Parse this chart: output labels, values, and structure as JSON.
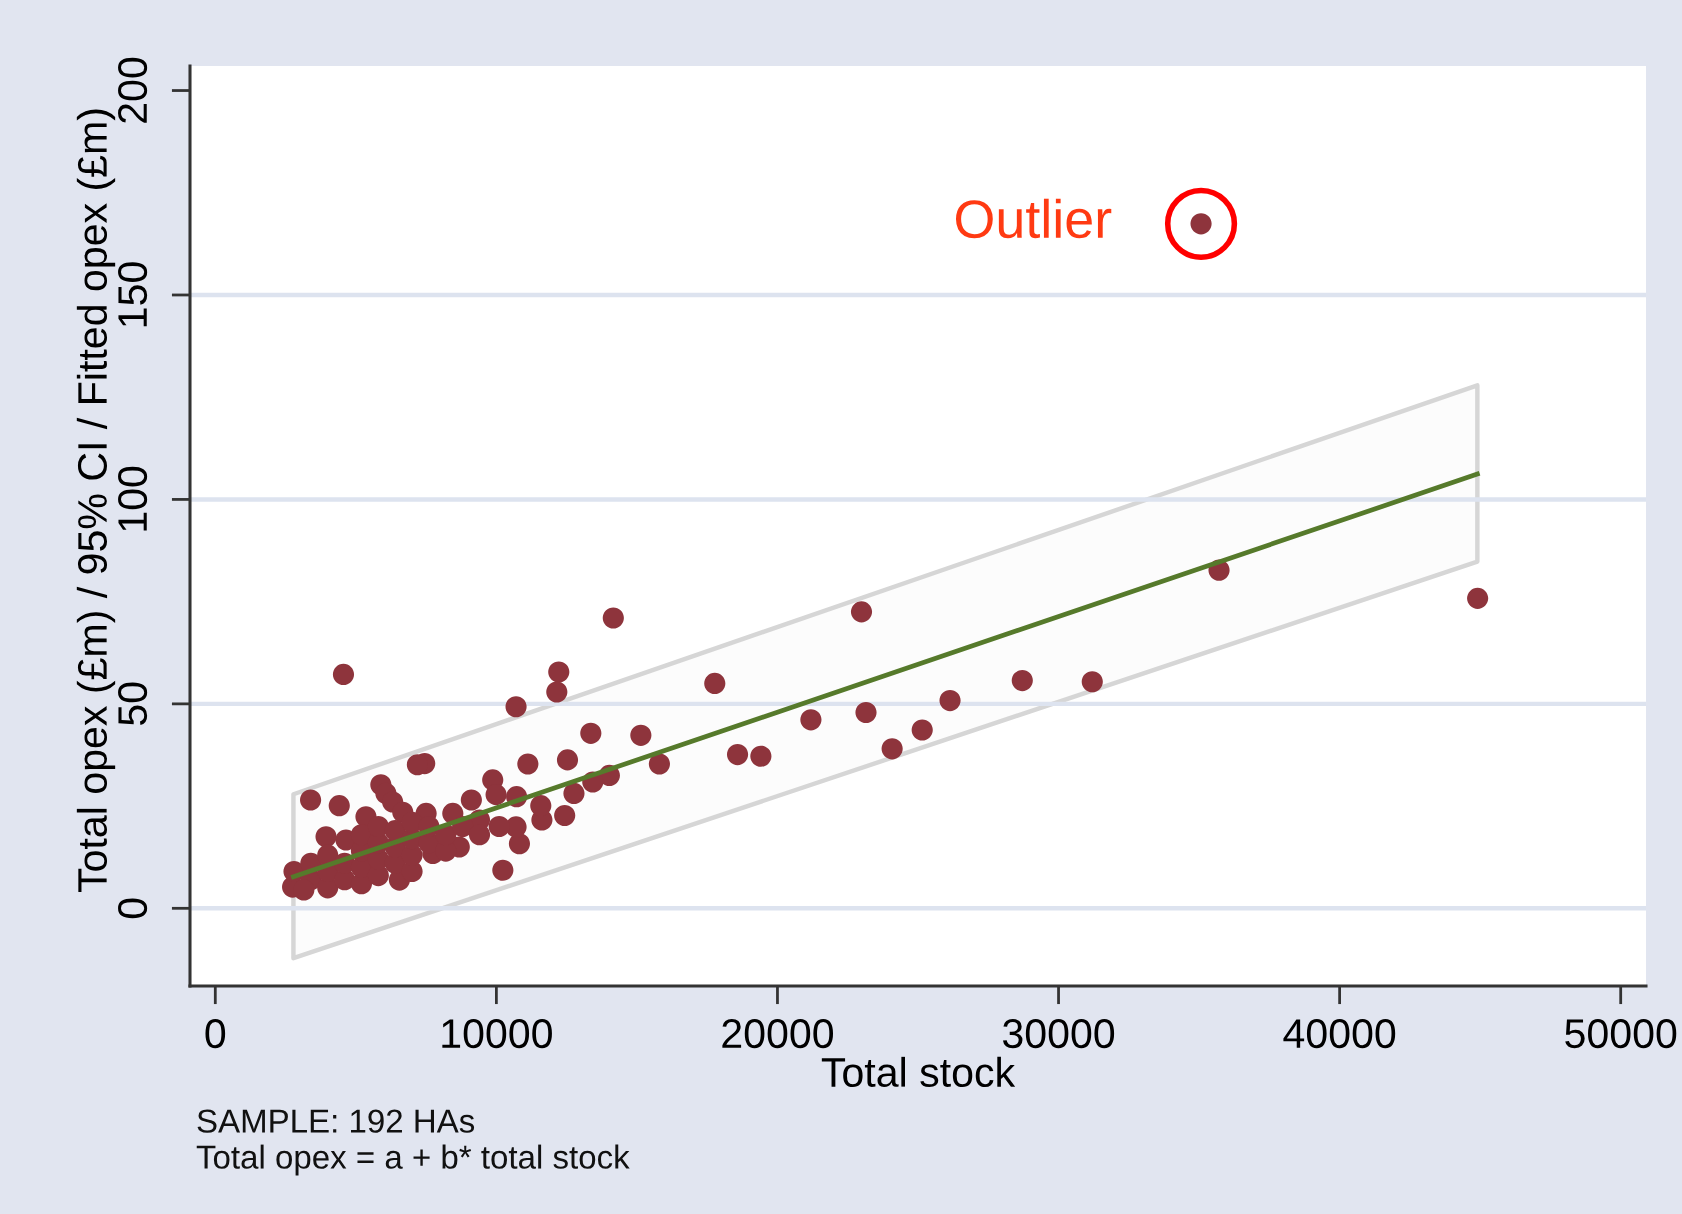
{
  "chart_data": {
    "type": "scatter",
    "xlabel": "Total stock",
    "ylabel": "Total opex (£m) / 95% CI / Fitted opex (£m)",
    "xlim": [
      -900,
      50900
    ],
    "ylim": [
      -19,
      206
    ],
    "xticks": [
      0,
      10000,
      20000,
      30000,
      40000,
      50000
    ],
    "yticks": [
      0,
      50,
      100,
      150,
      200
    ],
    "grid": "y",
    "series": [
      {
        "marker": "circle",
        "color": "#8e343c",
        "x": [
          22990,
          21190,
          23150,
          24080,
          25150,
          26140,
          28710,
          31200,
          35710,
          44910,
          35070,
          14160,
          12220,
          12150,
          10700,
          17770,
          13360,
          15140,
          18580,
          19410,
          15800,
          12530,
          11120,
          14020,
          13430,
          12760,
          12430,
          11620,
          11580,
          10720,
          10820,
          10230,
          10700,
          10100,
          4560,
          7450,
          7190,
          3390,
          4410,
          5890,
          6070,
          6310,
          6670,
          5360,
          7500,
          8450,
          9110,
          9870,
          9990,
          9400,
          6550,
          4650,
          3940,
          2750,
          7740,
          8680,
          2800,
          3400,
          3400,
          4000,
          4000,
          4000,
          4600,
          4600,
          5200,
          5200,
          5200,
          5200,
          5800,
          5800,
          5800,
          5800,
          6400,
          6400,
          6400,
          7000,
          7000,
          7000,
          7000,
          7600,
          7600,
          8200,
          8200,
          8800,
          9400,
          3150
        ],
        "values": [
          72.5,
          46.1,
          47.9,
          39.0,
          43.6,
          50.8,
          55.7,
          55.4,
          82.7,
          75.8,
          167.4,
          71.0,
          57.8,
          52.9,
          49.3,
          55.0,
          42.8,
          42.3,
          37.6,
          37.2,
          35.3,
          36.3,
          35.3,
          32.5,
          30.9,
          28.1,
          22.7,
          21.6,
          25.1,
          27.3,
          15.8,
          9.3,
          19.9,
          20,
          57.2,
          35.4,
          35.1,
          26.5,
          25.1,
          30.2,
          28.1,
          26.0,
          23.5,
          22.4,
          23.2,
          23.2,
          26.5,
          31.4,
          27.8,
          21.6,
          6.9,
          16.7,
          17.5,
          5.2,
          13.4,
          15.0,
          9,
          7,
          11,
          5,
          9,
          13,
          7,
          11,
          6,
          10,
          14,
          18,
          8,
          12,
          16,
          20,
          11,
          15,
          19,
          9,
          13,
          17,
          21,
          16,
          20,
          14,
          18,
          20,
          18,
          4.5
        ]
      },
      {
        "type": "line",
        "marker": "none",
        "line_style": "solid",
        "color": "#567a2b",
        "x": [
          2780,
          44900
        ],
        "values": [
          7.7,
          106.2
        ],
        "lower": [
          -12.2,
          84.8
        ],
        "upper": [
          27.9,
          127.9
        ]
      }
    ],
    "annotations": [
      {
        "text": "Outlier",
        "x": 35070,
        "y": 167.4
      },
      "SAMPLE: 192 HAs",
      "Total opex = a + b* total stock"
    ]
  }
}
